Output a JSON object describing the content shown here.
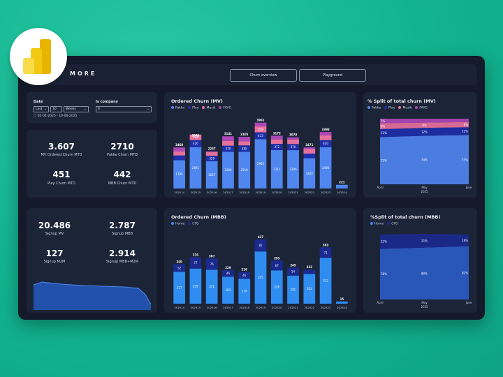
{
  "header": {
    "brand": "MORE",
    "nav": [
      "Churn overview",
      "Playground"
    ]
  },
  "filters": {
    "date_label": "Date",
    "period_mode": "Last",
    "period_count": "10",
    "period_unit": "Weeks",
    "company_label": "Is company",
    "company_value": "0",
    "date_range": "02-04-2025 - 10-06-2025"
  },
  "kpis_top": [
    {
      "value": "3.607",
      "label": "MV Ordered Churn MTD"
    },
    {
      "value": "2710",
      "label": "Pakke Churn MTD"
    },
    {
      "value": "451",
      "label": "Play Churn MTD"
    },
    {
      "value": "442",
      "label": "MBB Churn MTD"
    }
  ],
  "kpis_bottom": [
    {
      "value": "20.486",
      "label": "Signup MV"
    },
    {
      "value": "2.787",
      "label": "Signup MBB"
    },
    {
      "value": "127",
      "label": "Signup M2M"
    },
    {
      "value": "2.914",
      "label": "Signup MBB+M2M"
    }
  ],
  "colors": {
    "pakke": "#4f86ef",
    "play": "#1d2fa8",
    "musik": "#e7719d",
    "favg": "#ad48b8",
    "home": "#2f8cf0",
    "cfg": "#1a2a8e",
    "frame": "#141a2b",
    "card": "#1c2438"
  },
  "chart_data": [
    {
      "type": "bar",
      "title": "Ordered Churn (MV)",
      "legend": [
        "Pakke",
        "Play",
        "Musik",
        "FAVG"
      ],
      "categories": [
        "202514",
        "202515",
        "202516",
        "202517",
        "202518",
        "202519",
        "202520",
        "202521",
        "202522",
        "202523",
        "202524"
      ],
      "totals": [
        2468,
        3046,
        2237,
        3141,
        3105,
        3961,
        3172,
        3079,
        2471,
        3398,
        221
      ],
      "series": [
        {
          "name": "Pakke",
          "values": [
            1705,
            2491,
            1637,
            2206,
            2210,
            2965,
            2311,
            2306,
            1822,
            2490,
            221
          ]
        },
        {
          "name": "Play",
          "values": [
            283,
            420,
            329,
            370,
            385,
            413,
            372,
            370,
            277,
            420,
            0
          ]
        },
        {
          "name": "Musik",
          "values": [
            239,
            334,
            225,
            287,
            250,
            359,
            270,
            270,
            275,
            291,
            0
          ]
        }
      ]
    },
    {
      "type": "area",
      "title": "% Split of total churn (MV)",
      "legend": [
        "Pakke",
        "Play",
        "Musik",
        "FAVG"
      ],
      "x": [
        "April",
        "May",
        "June"
      ],
      "xlabel_year": "2025",
      "labels": {
        "Pakke": [
          "72%",
          "74%",
          "75%"
        ],
        "Play": [
          "12%",
          "12%",
          "12%"
        ],
        "Musik": [
          "9%",
          "8%",
          "8%"
        ],
        "FAVG": [
          "7%",
          "",
          ""
        ]
      },
      "series": [
        {
          "name": "Pakke",
          "values": [
            72,
            74,
            75
          ]
        },
        {
          "name": "Play",
          "values": [
            12,
            12,
            12
          ]
        },
        {
          "name": "Musik",
          "values": [
            9,
            8,
            8
          ]
        },
        {
          "name": "FAVG",
          "values": [
            7,
            6,
            5
          ]
        }
      ]
    },
    {
      "type": "bar",
      "title": "Ordered Churn (MBB)",
      "legend": [
        "Home",
        "CFG"
      ],
      "categories": [
        "202514",
        "202515",
        "202516",
        "202517",
        "202518",
        "202519",
        "202520",
        "202521",
        "202522",
        "202523",
        "202524"
      ],
      "totals": [
        269,
        316,
        307,
        229,
        216,
        437,
        293,
        245,
        232,
        383,
        15
      ],
      "series": [
        {
          "name": "Home",
          "values": [
            217,
            239,
            231,
            183,
            170,
            355,
            226,
            191,
            202,
            312,
            15
          ]
        },
        {
          "name": "CFG",
          "values": [
            52,
            77,
            76,
            46,
            46,
            82,
            67,
            54,
            30,
            71,
            0
          ]
        }
      ]
    },
    {
      "type": "area",
      "title": "%Split of total churn (MBB)",
      "legend": [
        "Home",
        "CFG"
      ],
      "x": [
        "April",
        "May",
        "June"
      ],
      "xlabel_year": "2025",
      "labels": {
        "Home": [
          "78%",
          "80%",
          "82%"
        ],
        "CFG": [
          "22%",
          "21%",
          "18%"
        ]
      },
      "series": [
        {
          "name": "Home",
          "values": [
            78,
            80,
            82
          ]
        },
        {
          "name": "CFG",
          "values": [
            22,
            21,
            18
          ]
        }
      ]
    }
  ]
}
